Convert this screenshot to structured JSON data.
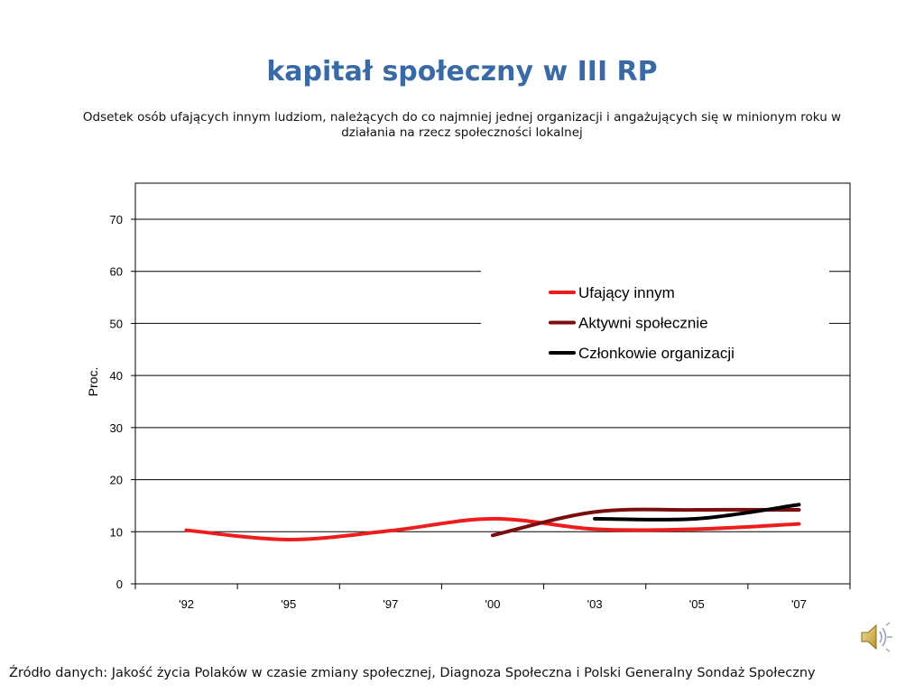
{
  "slide": {
    "title": "kapitał społeczny w III RP",
    "subtitle": "Odsetek osób ufających innym ludziom, należących do co najmniej jednej organizacji i angażujących się w minionym roku w działania na rzecz społeczności lokalnej",
    "source": "Źródło danych: Jakość życia Polaków w czasie zmiany społecznej,  Diagnoza Społeczna i Polski Generalny Sondaż Społeczny",
    "speaker_icon": "speaker-icon"
  },
  "chart_data": {
    "type": "line",
    "title": "",
    "xlabel": "",
    "ylabel": "Proc.",
    "x": [
      "'92",
      "'95",
      "'97",
      "'00",
      "'03",
      "'05",
      "'07"
    ],
    "ylim": [
      0,
      70
    ],
    "yticks": [
      0,
      10,
      20,
      30,
      40,
      50,
      60,
      70
    ],
    "grid": true,
    "legend_position": "right",
    "series": [
      {
        "name": "Ufający innym",
        "color": "#ee1c1c",
        "values": [
          10.3,
          8.5,
          10.2,
          12.5,
          10.5,
          10.5,
          11.5
        ]
      },
      {
        "name": "Aktywni społecznie",
        "color": "#7a0e0e",
        "values": [
          null,
          null,
          null,
          9.3,
          13.8,
          14.2,
          14.2
        ]
      },
      {
        "name": "Członkowie organizacji",
        "color": "#000000",
        "values": [
          null,
          null,
          null,
          null,
          12.5,
          12.5,
          15.2
        ]
      }
    ]
  }
}
